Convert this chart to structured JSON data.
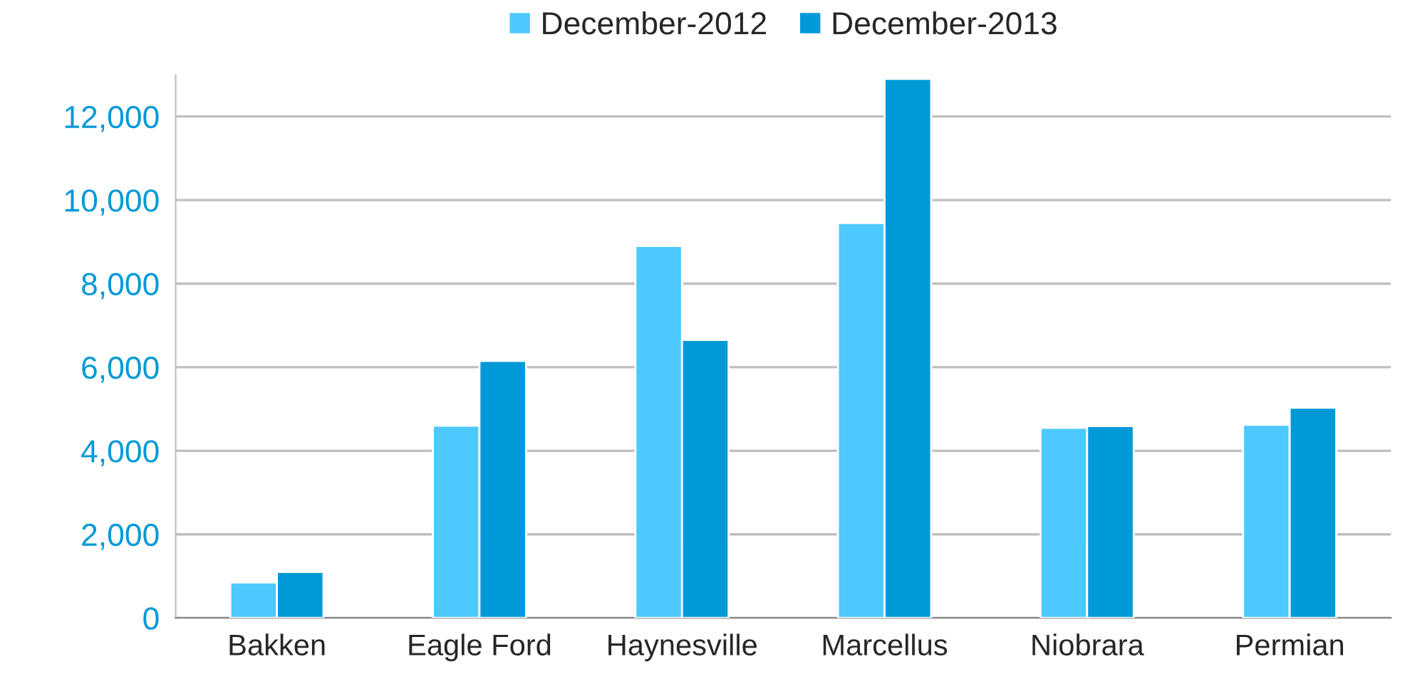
{
  "chart_data": {
    "type": "bar",
    "categories": [
      "Bakken",
      "Eagle Ford",
      "Haynesville",
      "Marcellus",
      "Niobrara",
      "Permian"
    ],
    "series": [
      {
        "name": "December-2012",
        "color": "#4dc9ff",
        "values": [
          850,
          4600,
          8900,
          9450,
          4550,
          4620
        ]
      },
      {
        "name": "December-2013",
        "color": "#0099d8",
        "values": [
          1100,
          6150,
          6650,
          12900,
          4590,
          5030
        ]
      }
    ],
    "ylim": [
      0,
      13000
    ],
    "yticks": [
      {
        "value": 0,
        "label": "0"
      },
      {
        "value": 2000,
        "label": "2,000"
      },
      {
        "value": 4000,
        "label": "4,000"
      },
      {
        "value": 6000,
        "label": "6,000"
      },
      {
        "value": 8000,
        "label": "8,000"
      },
      {
        "value": 10000,
        "label": "10,000"
      },
      {
        "value": 12000,
        "label": "12,000"
      }
    ],
    "grid": "y",
    "legend": "top"
  }
}
